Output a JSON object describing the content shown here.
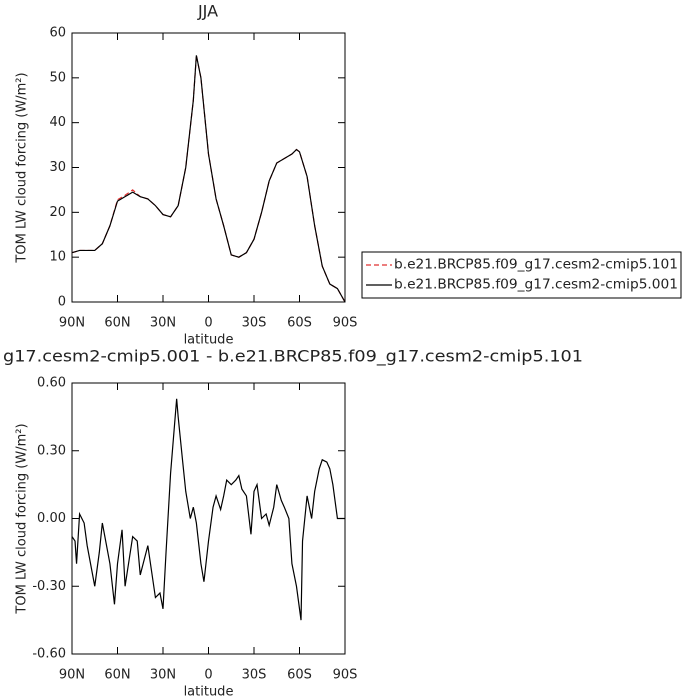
{
  "chart_data": [
    {
      "type": "line",
      "title": "JJA",
      "xlabel": "latitude",
      "ylabel": "TOM LW cloud forcing (W/m²)",
      "x": [
        90,
        85,
        80,
        75,
        70,
        65,
        60,
        55,
        50,
        45,
        40,
        35,
        30,
        25,
        20,
        15,
        10,
        8,
        5,
        0,
        -5,
        -10,
        -15,
        -20,
        -25,
        -30,
        -35,
        -40,
        -45,
        -50,
        -55,
        -58,
        -60,
        -65,
        -70,
        -75,
        -80,
        -85,
        -90
      ],
      "series": [
        {
          "name": "b.e21.BRCP85.f09_g17.cesm2-cmip5.101",
          "color": "#e03030",
          "dashed": true,
          "values": [
            11,
            11.5,
            11.5,
            11.5,
            13,
            17,
            22.8,
            23.8,
            25,
            23.5,
            23,
            21.5,
            19.5,
            19,
            21.5,
            30,
            45,
            55,
            50,
            33,
            23,
            17,
            10.5,
            10,
            11,
            14,
            20,
            27,
            31,
            32,
            33,
            34,
            33.5,
            28,
            17,
            8,
            4,
            3,
            0
          ]
        },
        {
          "name": "b.e21.BRCP85.f09_g17.cesm2-cmip5.001",
          "color": "#000000",
          "dashed": false,
          "values": [
            11,
            11.5,
            11.5,
            11.5,
            13,
            17,
            22.5,
            23.5,
            24.5,
            23.5,
            23,
            21.5,
            19.5,
            19,
            21.5,
            30,
            45,
            55,
            50,
            33,
            23,
            17,
            10.5,
            10,
            11,
            14,
            20,
            27,
            31,
            32,
            33,
            34,
            33.5,
            28,
            17,
            8,
            4,
            3,
            0
          ]
        }
      ],
      "xlim": [
        90,
        -90
      ],
      "xticks": [
        {
          "value": 90,
          "label": "90N"
        },
        {
          "value": 60,
          "label": "60N"
        },
        {
          "value": 30,
          "label": "30N"
        },
        0,
        {
          "value": -30,
          "label": "30S"
        },
        {
          "value": -60,
          "label": "60S"
        },
        {
          "value": -90,
          "label": "90S"
        }
      ],
      "ylim": [
        0,
        60
      ],
      "yticks": [
        0,
        10,
        20,
        30,
        40,
        50,
        60
      ],
      "legend": "right"
    },
    {
      "type": "line",
      "title": "g17.cesm2-cmip5.001 - b.e21.BRCP85.f09_g17.cesm2-cmip5.101",
      "xlabel": "latitude",
      "ylabel": "TOM LW cloud forcing (W/m²)",
      "x": [
        90,
        88,
        87,
        85,
        82,
        80,
        75,
        72,
        70,
        65,
        62,
        60,
        57,
        55,
        50,
        47,
        45,
        40,
        35,
        32,
        30,
        28,
        25,
        21,
        20,
        17,
        15,
        12,
        10,
        8,
        5,
        3,
        0,
        -3,
        -5,
        -8,
        -10,
        -12,
        -15,
        -18,
        -20,
        -22,
        -25,
        -28,
        -30,
        -32,
        -35,
        -38,
        -40,
        -43,
        -45,
        -48,
        -50,
        -53,
        -55,
        -58,
        -61,
        -62,
        -65,
        -68,
        -70,
        -73,
        -75,
        -78,
        -80,
        -82,
        -85,
        -88,
        -90
      ],
      "series": [
        {
          "name": "g17.cesm2-cmip5.001 - b.e21.BRCP85.f09_g17.cesm2-cmip5.101",
          "color": "#000000",
          "dashed": false,
          "values": [
            -0.08,
            -0.1,
            -0.2,
            0.02,
            -0.02,
            -0.12,
            -0.3,
            -0.15,
            -0.02,
            -0.2,
            -0.38,
            -0.2,
            -0.05,
            -0.3,
            -0.08,
            -0.1,
            -0.25,
            -0.12,
            -0.35,
            -0.33,
            -0.4,
            -0.15,
            0.2,
            0.53,
            0.45,
            0.25,
            0.12,
            0.0,
            0.05,
            -0.02,
            -0.2,
            -0.28,
            -0.1,
            0.05,
            0.1,
            0.04,
            0.1,
            0.17,
            0.15,
            0.17,
            0.19,
            0.13,
            0.1,
            -0.07,
            0.12,
            0.15,
            0.0,
            0.02,
            -0.03,
            0.05,
            0.15,
            0.08,
            0.05,
            0.0,
            -0.2,
            -0.3,
            -0.45,
            -0.1,
            0.1,
            0.0,
            0.12,
            0.22,
            0.26,
            0.25,
            0.22,
            0.15,
            0.0,
            0.0,
            0.0
          ]
        }
      ],
      "xlim": [
        90,
        -90
      ],
      "xticks": [
        {
          "value": 90,
          "label": "90N"
        },
        {
          "value": 60,
          "label": "60N"
        },
        {
          "value": 30,
          "label": "30N"
        },
        0,
        {
          "value": -30,
          "label": "30S"
        },
        {
          "value": -60,
          "label": "60S"
        },
        {
          "value": -90,
          "label": "90S"
        }
      ],
      "ylim": [
        -0.6,
        0.6
      ],
      "yticks": [
        {
          "value": -0.6,
          "label": "-0.60"
        },
        {
          "value": -0.3,
          "label": "-0.30"
        },
        {
          "value": 0,
          "label": "0.00"
        },
        {
          "value": 0.3,
          "label": "0.30"
        },
        {
          "value": 0.6,
          "label": "0.60"
        }
      ]
    }
  ]
}
